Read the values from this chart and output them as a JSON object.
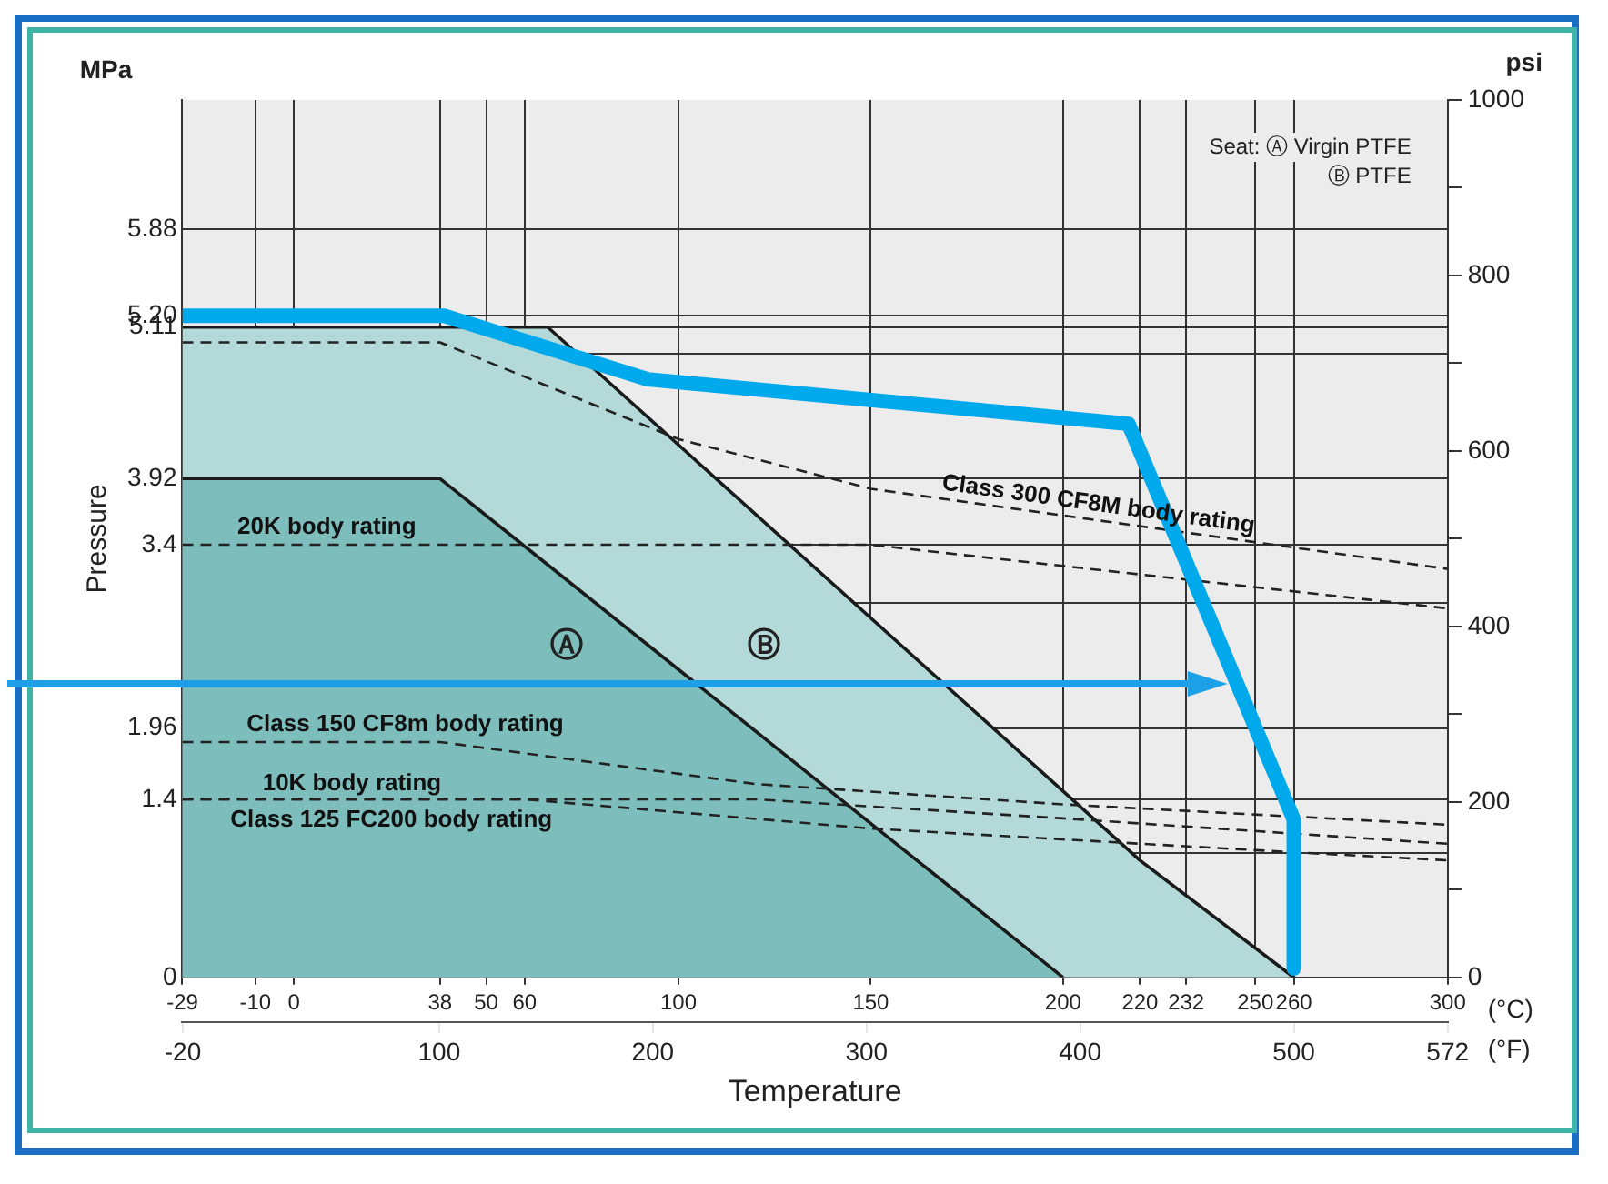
{
  "chart_data": {
    "type": "line",
    "xlabel": "Temperature",
    "ylabel": "Pressure",
    "grid": true,
    "legend": false,
    "marker": "none",
    "line_style": "dashed",
    "xlim": [
      -29,
      300
    ],
    "xticks": [
      -29,
      -10,
      0,
      38,
      50,
      60,
      100,
      150,
      200,
      220,
      232,
      250,
      260,
      300
    ],
    "x2lim": [
      -20.2,
      572
    ],
    "x2ticks": [
      -20,
      100,
      200,
      300,
      400,
      500,
      572
    ],
    "ylim": [
      0,
      6.895
    ],
    "yticks": [
      0,
      {
        "value": 0.98,
        "label": null
      },
      1.4,
      1.96,
      {
        "value": 2.94,
        "label": null
      },
      3.4,
      3.92,
      {
        "value": 4.9,
        "label": null
      },
      5.11,
      {
        "value": 5.2,
        "label": "5.20"
      },
      5.88
    ],
    "y2lim": [
      0,
      1000
    ],
    "y2ticks": [
      0,
      {
        "value": 100,
        "label": null
      },
      200,
      {
        "value": 300,
        "label": null
      },
      400,
      {
        "value": 500,
        "label": null
      },
      600,
      {
        "value": 700,
        "label": null
      },
      800,
      {
        "value": 900,
        "label": null
      },
      1000
    ],
    "annotations": [
      "MPa",
      "psi",
      "(°C)",
      "(°F)",
      "Seat: Ⓐ Virgin PTFE",
      "Ⓑ PTFE",
      "Ⓐ",
      "Ⓑ"
    ],
    "series": [
      {
        "type": "area",
        "line_style": "solid",
        "color": "#b3d9d9",
        "x": [
          -29,
          66,
          220,
          260
        ],
        "values": [
          5.11,
          5.11,
          0.92,
          0
        ]
      },
      {
        "type": "area",
        "line_style": "solid",
        "color": "#7dbdbb",
        "x": [
          -29,
          38,
          200
        ],
        "values": [
          3.92,
          3.92,
          0
        ]
      },
      {
        "name": "Class 300 CF8M body rating",
        "color": "#222222",
        "x": [
          -29,
          38,
          100,
          150,
          300
        ],
        "values": [
          4.99,
          4.99,
          4.23,
          3.84,
          3.21
        ]
      },
      {
        "name": "20K body rating",
        "color": "#222222",
        "x": [
          -29,
          150,
          300
        ],
        "values": [
          3.4,
          3.4,
          2.9
        ]
      },
      {
        "name": "Class 150 CF8m body rating",
        "color": "#222222",
        "x": [
          -29,
          38,
          120,
          200,
          300
        ],
        "values": [
          1.85,
          1.85,
          1.52,
          1.36,
          1.2
        ]
      },
      {
        "name": "10K body rating",
        "color": "#222222",
        "x": [
          -29,
          120,
          200,
          300
        ],
        "values": [
          1.4,
          1.4,
          1.25,
          1.05
        ]
      },
      {
        "name": "Class 125 FC200 body rating",
        "color": "#222222",
        "x": [
          -29,
          60,
          150,
          250,
          300
        ],
        "values": [
          1.4,
          1.4,
          1.17,
          1.0,
          0.92
        ]
      },
      {
        "line_style": "solid",
        "color": "#00a8ec",
        "x": [
          -29,
          39,
          92,
          217,
          260,
          260
        ],
        "values": [
          5.2,
          5.2,
          4.7,
          4.35,
          1.24,
          0.07
        ]
      }
    ]
  }
}
